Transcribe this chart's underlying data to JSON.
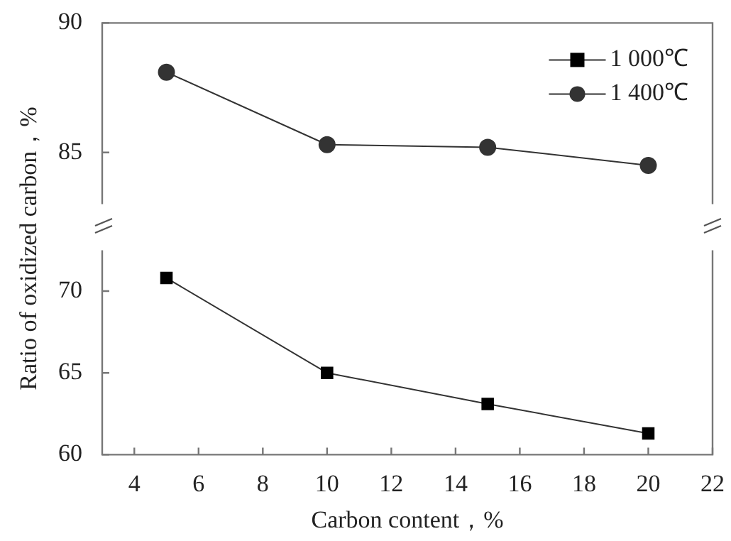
{
  "chart_data": [
    {
      "type": "line",
      "ylabel": "Ratio of oxidized carbon，%",
      "x": [
        5,
        10,
        15,
        20
      ],
      "xlim": [
        3,
        22
      ],
      "xticks": [
        4,
        6,
        8,
        10,
        12,
        14,
        16,
        18,
        20,
        22
      ],
      "ylim": [
        83,
        90
      ],
      "yticks": [
        85,
        90
      ],
      "tick_labels": "y",
      "legend": "top right",
      "grid": false,
      "series": [
        {
          "name": "1 000℃",
          "color": "#000000",
          "marker": "square",
          "values": [
            null,
            null,
            null,
            null
          ]
        },
        {
          "name": "1 400℃",
          "color": "#333333",
          "marker": "circle",
          "values": [
            88.1,
            85.3,
            85.2,
            84.5
          ]
        }
      ]
    },
    {
      "type": "line",
      "xlabel": "Carbon content，%",
      "x": [
        5,
        10,
        15,
        20
      ],
      "xlim": [
        3,
        22
      ],
      "xticks": [
        4,
        6,
        8,
        10,
        12,
        14,
        16,
        18,
        20,
        22
      ],
      "ylim": [
        60,
        72.5
      ],
      "yticks": [
        60,
        65,
        70
      ],
      "legend": false,
      "grid": false,
      "series": [
        {
          "color": "#000000",
          "marker": "square",
          "values": [
            70.8,
            65.0,
            63.1,
            61.3
          ]
        }
      ]
    }
  ]
}
